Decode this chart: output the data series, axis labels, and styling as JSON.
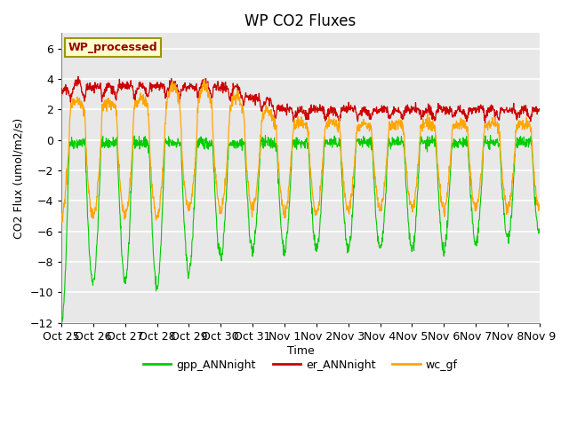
{
  "title": "WP CO2 Fluxes",
  "xlabel": "Time",
  "ylabel": "CO2 Flux (umol/m2/s)",
  "ylim": [
    -12,
    7
  ],
  "yticks": [
    -12,
    -10,
    -8,
    -6,
    -4,
    -2,
    0,
    2,
    4,
    6
  ],
  "line_colors": {
    "gpp": "#00CC00",
    "er": "#CC0000",
    "wc": "#FFA500"
  },
  "legend_label": "WP_processed",
  "legend_facecolor": "#FFFFCC",
  "legend_edgecolor": "#999900",
  "legend_textcolor": "#990000",
  "plot_bgcolor": "#E8E8E8",
  "fig_bgcolor": "#FFFFFF",
  "n_days": 15,
  "points_per_day": 96,
  "seed": 42,
  "tick_days": [
    0,
    1,
    2,
    3,
    4,
    5,
    6,
    7,
    8,
    9,
    10,
    11,
    12,
    13,
    14,
    15
  ],
  "tick_labels": [
    "Oct 25",
    "Oct 26",
    "Oct 27",
    "Oct 28",
    "Oct 29",
    "Oct 30",
    "Oct 31",
    "Nov 1",
    "Nov 2",
    "Nov 3",
    "Nov 4",
    "Nov 5",
    "Nov 6",
    "Nov 7",
    "Nov 8",
    "Nov 9"
  ]
}
